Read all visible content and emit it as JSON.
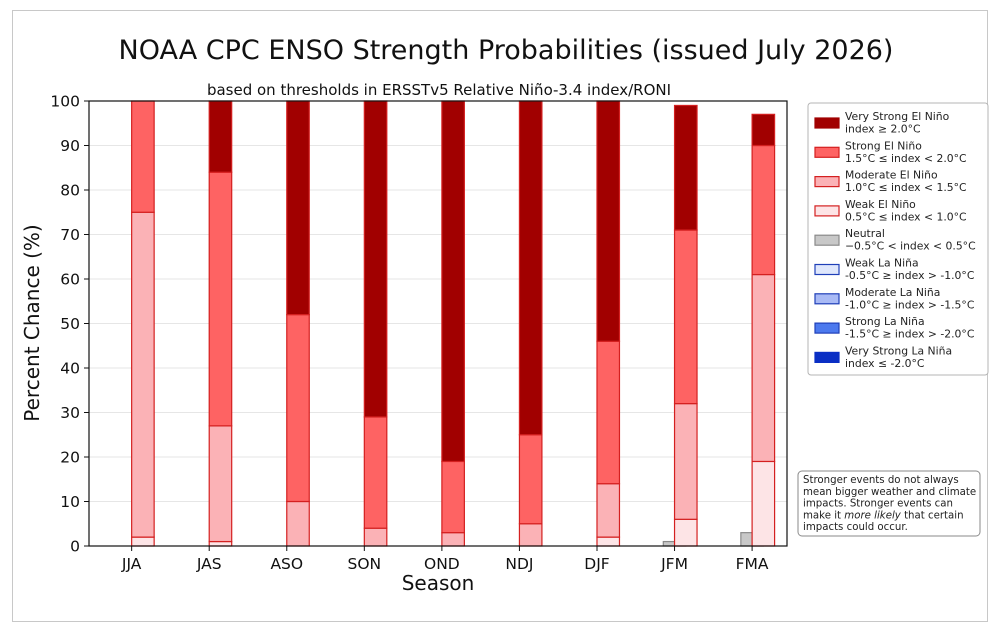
{
  "chart_data": {
    "type": "bar",
    "stacked": true,
    "title": "NOAA CPC ENSO Strength Probabilities (issued July 2026)",
    "subtitle": "based on thresholds in ERSSTv5 Relative Niño-3.4 index/RONI",
    "xlabel": "Season",
    "ylabel": "Percent Chance (%)",
    "ylim": [
      0,
      100
    ],
    "yticks": [
      0,
      10,
      20,
      30,
      40,
      50,
      60,
      70,
      80,
      90,
      100
    ],
    "grid": true,
    "legend_position": "right",
    "categories": [
      "JJA",
      "JAS",
      "ASO",
      "SON",
      "OND",
      "NDJ",
      "DJF",
      "JFM",
      "FMA"
    ],
    "la_nina_series": [
      {
        "name": "Very Strong La Niña",
        "color": "#0a2fc4",
        "values": [
          0,
          0,
          0,
          0,
          0,
          0,
          0,
          0,
          0
        ]
      },
      {
        "name": "Strong La Niña",
        "color": "#4c79ee",
        "values": [
          0,
          0,
          0,
          0,
          0,
          0,
          0,
          0,
          0
        ]
      },
      {
        "name": "Moderate La Niña",
        "color": "#a9baf5",
        "values": [
          0,
          0,
          0,
          0,
          0,
          0,
          0,
          0,
          0
        ]
      },
      {
        "name": "Weak La Niña",
        "color": "#dfe7fc",
        "values": [
          0,
          0,
          0,
          0,
          0,
          0,
          0,
          0,
          0
        ]
      }
    ],
    "neutral_series": {
      "name": "Neutral",
      "color": "#c8c8c8",
      "values": [
        0,
        0,
        0,
        0,
        0,
        0,
        0,
        1,
        3
      ]
    },
    "el_nino_series": [
      {
        "name": "Weak El Niño",
        "color": "#fde4e6",
        "values": [
          2,
          1,
          0,
          0,
          0,
          0,
          2,
          6,
          19
        ]
      },
      {
        "name": "Moderate El Niño",
        "color": "#fbb2b6",
        "values": [
          73,
          26,
          10,
          4,
          3,
          5,
          12,
          26,
          42
        ]
      },
      {
        "name": "Strong El Niño",
        "color": "#fe6363",
        "values": [
          25,
          57,
          42,
          25,
          16,
          20,
          32,
          39,
          29
        ]
      },
      {
        "name": "Very Strong El Niño",
        "color": "#a10000",
        "values": [
          0,
          16,
          48,
          71,
          81,
          75,
          54,
          28,
          7
        ]
      }
    ],
    "legend": [
      {
        "line1": "Very Strong El Niño",
        "line2": "index ≥ 2.0°C",
        "color": "#a10000",
        "edge": "#a10000"
      },
      {
        "line1": "Strong El Niño",
        "line2": "1.5°C ≤ index < 2.0°C",
        "color": "#fe6363",
        "edge": "#d42020"
      },
      {
        "line1": "Moderate El Niño",
        "line2": "1.0°C ≤ index < 1.5°C",
        "color": "#fbb2b6",
        "edge": "#d42020"
      },
      {
        "line1": "Weak El Niño",
        "line2": "0.5°C ≤ index < 1.0°C",
        "color": "#fde4e6",
        "edge": "#d42020"
      },
      {
        "line1": "Neutral",
        "line2": "−0.5°C < index < 0.5°C",
        "color": "#c8c8c8",
        "edge": "#8a8a8a"
      },
      {
        "line1": "Weak La Niña",
        "line2": "-0.5°C ≥ index > -1.0°C",
        "color": "#dfe7fc",
        "edge": "#1f3fb8"
      },
      {
        "line1": "Moderate La Niña",
        "line2": "-1.0°C ≥ index > -1.5°C",
        "color": "#a9baf5",
        "edge": "#1f3fb8"
      },
      {
        "line1": "Strong La Niña",
        "line2": "-1.5°C ≥ index > -2.0°C",
        "color": "#4c79ee",
        "edge": "#1f3fb8"
      },
      {
        "line1": "Very Strong La Niña",
        "line2": "index ≤ -2.0°C",
        "color": "#0a2fc4",
        "edge": "#0a2fc4"
      }
    ],
    "note_lines": [
      "Stronger events do not always",
      "mean bigger weather and climate",
      "impacts. Stronger events can",
      "make it |more likely| that certain",
      "impacts could occur."
    ]
  }
}
